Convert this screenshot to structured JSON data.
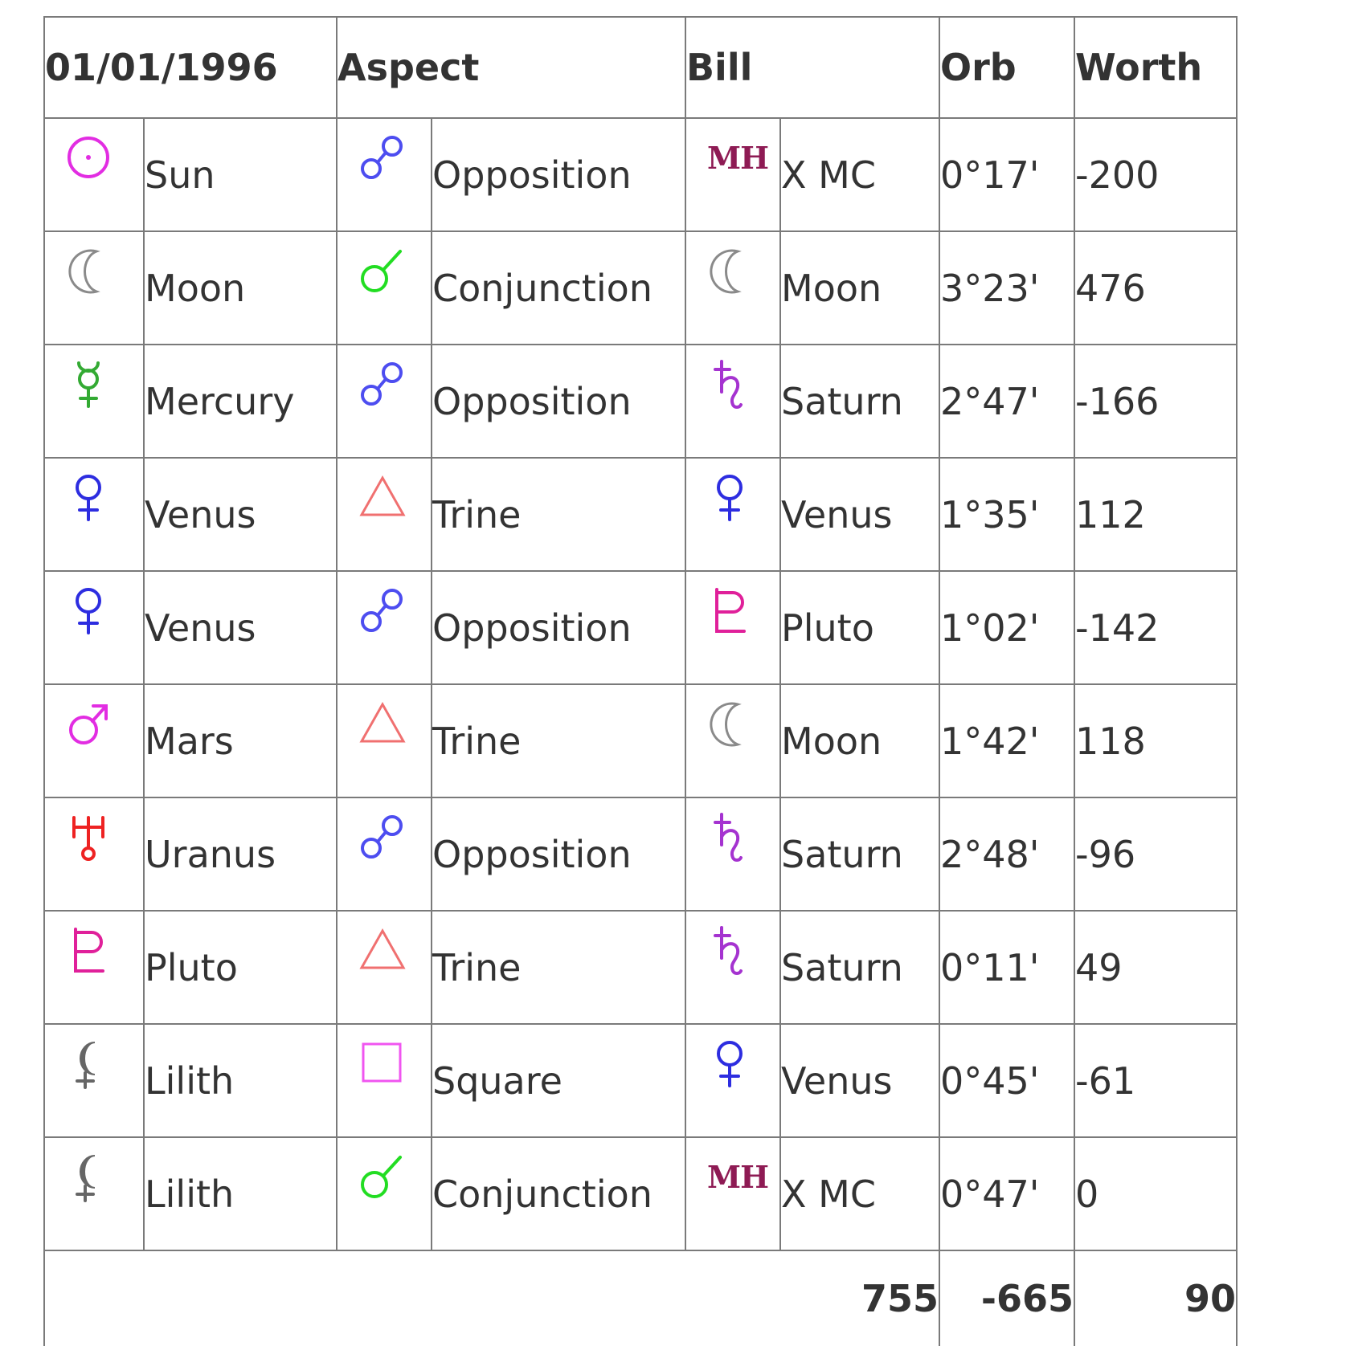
{
  "table": {
    "headers": [
      "01/01/1996",
      "Aspect",
      "Bill",
      "Orb",
      "Worth"
    ],
    "rows": [
      {
        "planet_icon": "sun-icon",
        "planet_color": "#e22de2",
        "planet": "Sun",
        "aspect_icon": "opposition-icon",
        "aspect_color": "#4d4df0",
        "aspect": "Opposition",
        "bill_icon": "mh-icon",
        "bill_color": "#8e1b54",
        "bill_glyph": "MH",
        "bill": "X MC",
        "orb": "0°17'",
        "worth": "-200"
      },
      {
        "planet_icon": "moon-icon",
        "planet_color": "#8a8a8a",
        "planet": "Moon",
        "aspect_icon": "conjunction-icon",
        "aspect_color": "#22dd22",
        "aspect": "Conjunction",
        "bill_icon": "moon-icon",
        "bill_color": "#8a8a8a",
        "bill_glyph": "",
        "bill": "Moon",
        "orb": "3°23'",
        "worth": "476"
      },
      {
        "planet_icon": "mercury-icon",
        "planet_color": "#33aa33",
        "planet": "Mercury",
        "aspect_icon": "opposition-icon",
        "aspect_color": "#4d4df0",
        "aspect": "Opposition",
        "bill_icon": "saturn-icon",
        "bill_color": "#a533d0",
        "bill_glyph": "",
        "bill": "Saturn",
        "orb": "2°47'",
        "worth": "-166"
      },
      {
        "planet_icon": "venus-icon",
        "planet_color": "#2d2de0",
        "planet": "Venus",
        "aspect_icon": "trine-icon",
        "aspect_color": "#f07070",
        "aspect": "Trine",
        "bill_icon": "venus-icon",
        "bill_color": "#2d2de0",
        "bill_glyph": "",
        "bill": "Venus",
        "orb": "1°35'",
        "worth": "112"
      },
      {
        "planet_icon": "venus-icon",
        "planet_color": "#2d2de0",
        "planet": "Venus",
        "aspect_icon": "opposition-icon",
        "aspect_color": "#4d4df0",
        "aspect": "Opposition",
        "bill_icon": "pluto-icon",
        "bill_color": "#e0209a",
        "bill_glyph": "",
        "bill": "Pluto",
        "orb": "1°02'",
        "worth": "-142"
      },
      {
        "planet_icon": "mars-icon",
        "planet_color": "#e22de2",
        "planet": "Mars",
        "aspect_icon": "trine-icon",
        "aspect_color": "#f07070",
        "aspect": "Trine",
        "bill_icon": "moon-icon",
        "bill_color": "#8a8a8a",
        "bill_glyph": "",
        "bill": "Moon",
        "orb": "1°42'",
        "worth": "118"
      },
      {
        "planet_icon": "uranus-icon",
        "planet_color": "#ee2222",
        "planet": "Uranus",
        "aspect_icon": "opposition-icon",
        "aspect_color": "#4d4df0",
        "aspect": "Opposition",
        "bill_icon": "saturn-icon",
        "bill_color": "#a533d0",
        "bill_glyph": "",
        "bill": "Saturn",
        "orb": "2°48'",
        "worth": "-96"
      },
      {
        "planet_icon": "pluto-icon",
        "planet_color": "#e0209a",
        "planet": "Pluto",
        "aspect_icon": "trine-icon",
        "aspect_color": "#f07070",
        "aspect": "Trine",
        "bill_icon": "saturn-icon",
        "bill_color": "#a533d0",
        "bill_glyph": "",
        "bill": "Saturn",
        "orb": "0°11'",
        "worth": "49"
      },
      {
        "planet_icon": "lilith-icon",
        "planet_color": "#666666",
        "planet": "Lilith",
        "aspect_icon": "square-icon",
        "aspect_color": "#f055f0",
        "aspect": "Square",
        "bill_icon": "venus-icon",
        "bill_color": "#2d2de0",
        "bill_glyph": "",
        "bill": "Venus",
        "orb": "0°45'",
        "worth": "-61"
      },
      {
        "planet_icon": "lilith-icon",
        "planet_color": "#666666",
        "planet": "Lilith",
        "aspect_icon": "conjunction-icon",
        "aspect_color": "#22dd22",
        "aspect": "Conjunction",
        "bill_icon": "mh-icon",
        "bill_color": "#8e1b54",
        "bill_glyph": "MH",
        "bill": "X MC",
        "orb": "0°47'",
        "worth": "0"
      }
    ],
    "totals": {
      "bill": "755",
      "orb": "-665",
      "worth": "90"
    }
  }
}
